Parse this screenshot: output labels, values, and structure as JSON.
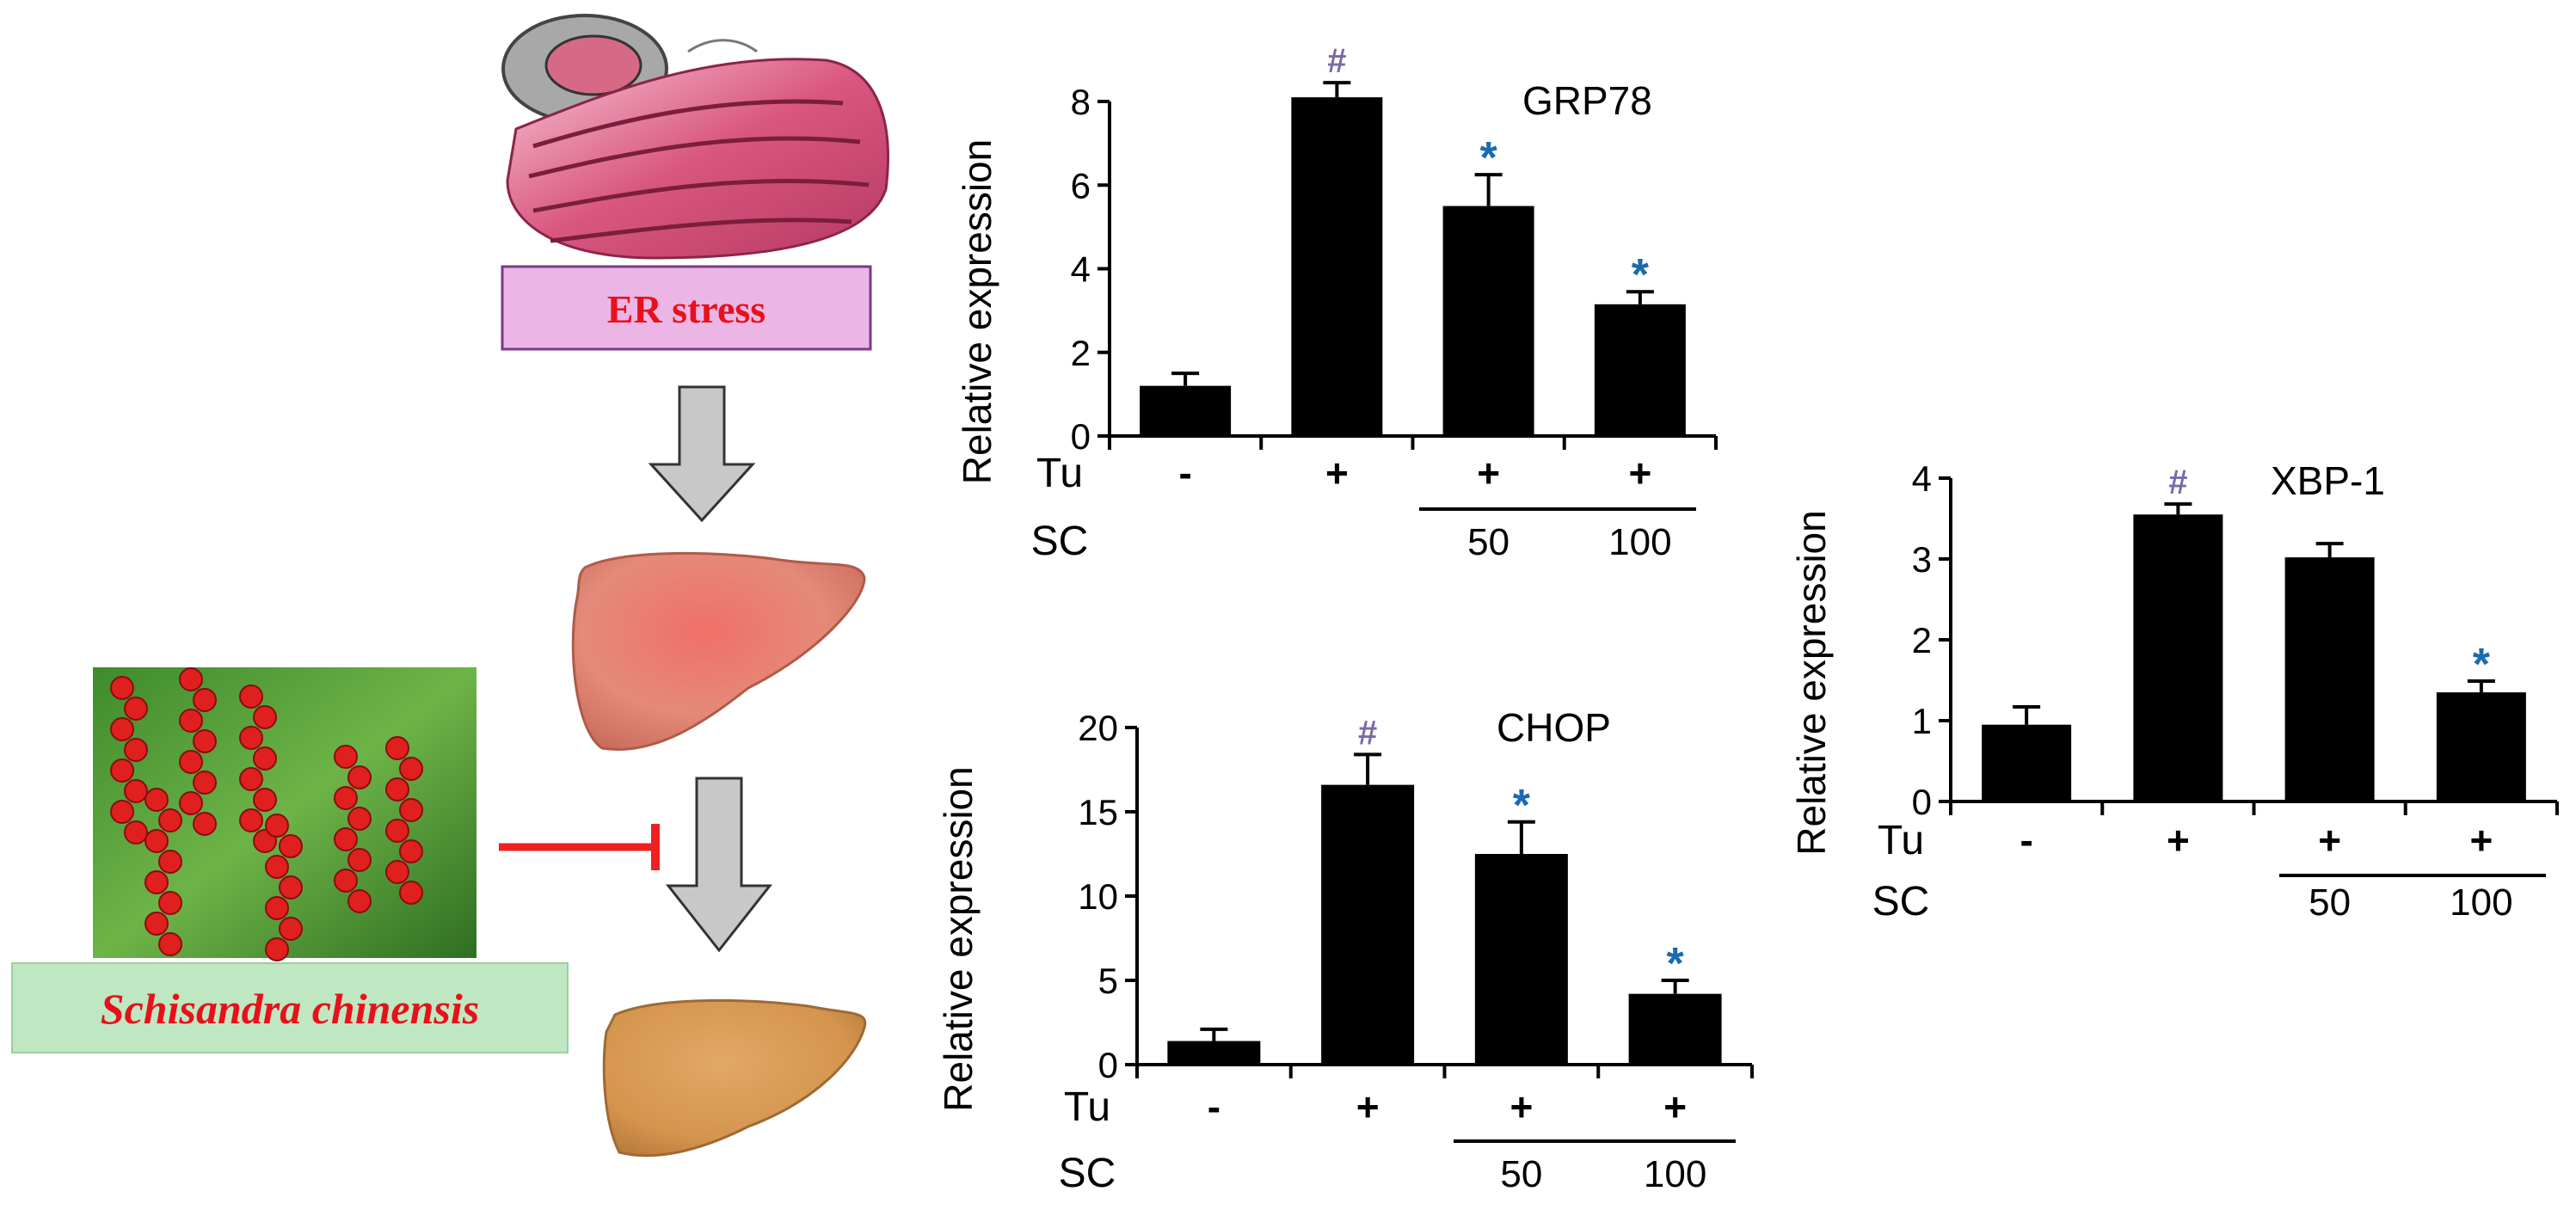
{
  "labels": {
    "er_stress": "ER stress",
    "plant_name": "Schisandra chinensis",
    "treatment_row_label": "Tu",
    "dose_row_label": "SC"
  },
  "colors": {
    "bar": "#000000",
    "er_box_fill": "#ebb5e6",
    "er_box_border": "#7a3a8a",
    "er_text": "#e8101a",
    "plant_box_fill": "#bfe8c2",
    "plant_text": "#e8101a",
    "inhibit_line": "#ef2020",
    "arrow_fill": "#c8c8c8",
    "hash_mark": "#7a6aa8",
    "star_mark": "#1a6ab0"
  },
  "chart_data": [
    {
      "type": "bar",
      "title": "GRP78",
      "ylabel": "Relative expression",
      "ylim": [
        0,
        8
      ],
      "yticks": [
        0,
        2,
        4,
        6,
        8
      ],
      "categories": [
        "control",
        "Tu",
        "Tu+SC50",
        "Tu+SC100"
      ],
      "tu_row": [
        "-",
        "+",
        "+",
        "+"
      ],
      "sc_row": [
        "",
        "",
        "50",
        "100"
      ],
      "values": [
        1.2,
        8.1,
        5.5,
        3.15
      ],
      "errors": [
        0.3,
        0.35,
        0.75,
        0.3
      ],
      "markers": [
        "",
        "#",
        "*",
        "*"
      ]
    },
    {
      "type": "bar",
      "title": "CHOP",
      "ylabel": "Relative expression",
      "ylim": [
        0,
        20
      ],
      "yticks": [
        0,
        5,
        10,
        15,
        20
      ],
      "categories": [
        "control",
        "Tu",
        "Tu+SC50",
        "Tu+SC100"
      ],
      "tu_row": [
        "-",
        "+",
        "+",
        "+"
      ],
      "sc_row": [
        "",
        "",
        "50",
        "100"
      ],
      "values": [
        1.4,
        16.6,
        12.5,
        4.2
      ],
      "errors": [
        0.7,
        1.8,
        1.9,
        0.8
      ],
      "markers": [
        "",
        "#",
        "*",
        "*"
      ]
    },
    {
      "type": "bar",
      "title": "XBP-1",
      "ylabel": "Relative expression",
      "ylim": [
        0,
        4
      ],
      "yticks": [
        0,
        1,
        2,
        3,
        4
      ],
      "categories": [
        "control",
        "Tu",
        "Tu+SC50",
        "Tu+SC100"
      ],
      "tu_row": [
        "-",
        "+",
        "+",
        "+"
      ],
      "sc_row": [
        "",
        "",
        "50",
        "100"
      ],
      "values": [
        0.95,
        3.55,
        3.02,
        1.35
      ],
      "errors": [
        0.22,
        0.13,
        0.17,
        0.14
      ],
      "markers": [
        "",
        "#",
        "",
        "*"
      ]
    }
  ]
}
